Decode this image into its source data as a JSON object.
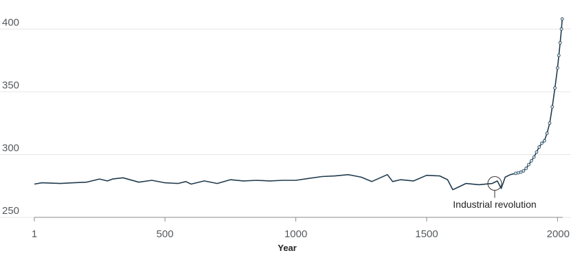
{
  "chart_data": {
    "type": "line",
    "title": "",
    "xlabel": "Year",
    "ylabel": "",
    "xlim": [
      1,
      2020
    ],
    "ylim": [
      250,
      410
    ],
    "x_ticks": [
      1,
      500,
      1000,
      1500,
      2000
    ],
    "x_tick_labels": [
      "1",
      "500",
      "1000",
      "1500",
      "2000"
    ],
    "y_ticks": [
      250,
      300,
      350,
      400
    ],
    "y_tick_labels": [
      "250",
      "300",
      "350",
      "400"
    ],
    "grid": true,
    "colors": {
      "line": "#1f3a4d",
      "grid": "#e6e6e6",
      "axis": "#8a8a8a",
      "markers": "#cfe3ee"
    },
    "series": [
      {
        "x": [
          1,
          30,
          100,
          150,
          200,
          250,
          280,
          300,
          340,
          400,
          450,
          500,
          550,
          580,
          600,
          650,
          700,
          750,
          800,
          850,
          900,
          950,
          1000,
          1050,
          1100,
          1150,
          1200,
          1250,
          1290,
          1350,
          1370,
          1400,
          1450,
          1500,
          1550,
          1580,
          1600,
          1620,
          1650,
          1700,
          1750,
          1770,
          1785,
          1800,
          1820,
          1840,
          1850,
          1860,
          1870,
          1880,
          1890,
          1900,
          1910,
          1920,
          1930,
          1940,
          1950,
          1960,
          1970,
          1980,
          1990,
          2000,
          2005,
          2010,
          2015,
          2018
        ],
        "values": [
          276.5,
          277.5,
          277,
          277.5,
          278,
          280.5,
          279,
          280.5,
          281.5,
          278,
          279.5,
          277.5,
          277,
          278.5,
          276.5,
          279,
          277,
          280,
          279,
          279.5,
          279,
          279.5,
          279.5,
          281,
          282.5,
          283,
          284,
          282,
          278.5,
          284,
          278.5,
          280,
          279,
          283.5,
          283,
          280,
          272,
          274,
          277,
          276,
          277,
          279,
          273,
          282,
          284,
          285,
          285.5,
          286,
          287,
          289,
          292,
          295,
          298,
          302,
          306,
          309,
          311,
          317,
          325,
          338,
          353,
          369,
          379,
          389,
          400,
          408
        ]
      }
    ],
    "annotations": [
      {
        "text": "Industrial revolution",
        "x": 1760,
        "y": 277
      }
    ]
  }
}
